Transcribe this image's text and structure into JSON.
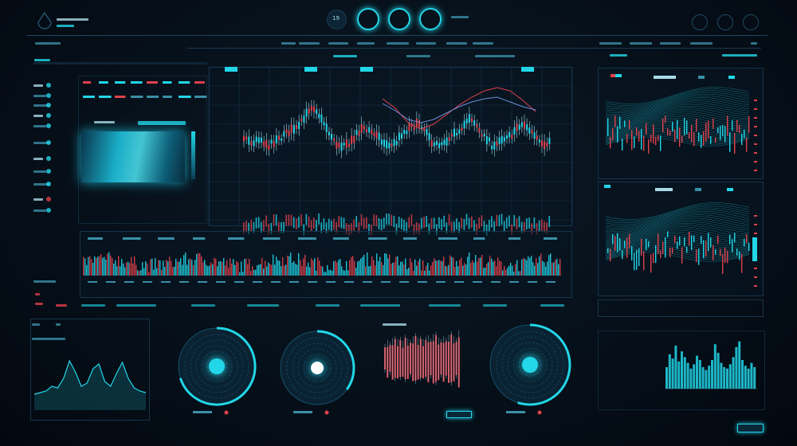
{
  "header": {
    "badge": "19",
    "accent": "#22d6e8",
    "alert": "#e0414d",
    "icons": [
      "drop-logo-icon",
      "pulse-icon",
      "wave-icon",
      "wave-icon",
      "user-icon",
      "bell-icon",
      "settings-icon"
    ]
  },
  "main_chart": {
    "closes": [
      62,
      58,
      60,
      55,
      57,
      64,
      70,
      76,
      85,
      92,
      88,
      72,
      60,
      52,
      58,
      66,
      74,
      70,
      62,
      55,
      57,
      65,
      72,
      78,
      70,
      60,
      54,
      58,
      66,
      75,
      82,
      76,
      64,
      56,
      58,
      62,
      70,
      77,
      72,
      64,
      58,
      60
    ]
  },
  "overlay_lines": {
    "red": [
      40,
      52,
      70,
      78,
      72,
      60,
      48,
      38,
      30,
      26,
      30,
      42,
      56
    ],
    "blue": [
      46,
      55,
      66,
      70,
      66,
      58,
      50,
      44,
      40,
      38,
      44,
      50,
      54
    ]
  },
  "area_chart": {
    "values": [
      20,
      22,
      24,
      30,
      28,
      40,
      62,
      48,
      30,
      34,
      52,
      58,
      36,
      30,
      46,
      60,
      40,
      28,
      24,
      22
    ]
  },
  "red_bars": {
    "values": [
      40,
      55,
      48,
      62,
      70,
      58,
      66,
      52,
      74,
      60,
      56,
      68,
      80,
      62,
      70,
      58,
      66,
      72,
      60,
      76,
      84,
      64,
      58,
      70,
      62,
      74,
      86,
      68,
      60,
      90
    ]
  },
  "bottom_right_bars": {
    "values": [
      30,
      48,
      42,
      60,
      38,
      52,
      44,
      36,
      28,
      34,
      46,
      40,
      30,
      26,
      32,
      40,
      62,
      50,
      36,
      30,
      28,
      34,
      44,
      58,
      66,
      40,
      32,
      28,
      36,
      30
    ]
  },
  "gauges": [
    {
      "level": 0.7
    },
    {
      "level": 0.35
    },
    {
      "level": 0.55
    }
  ],
  "live_button": {
    "state": "active"
  }
}
